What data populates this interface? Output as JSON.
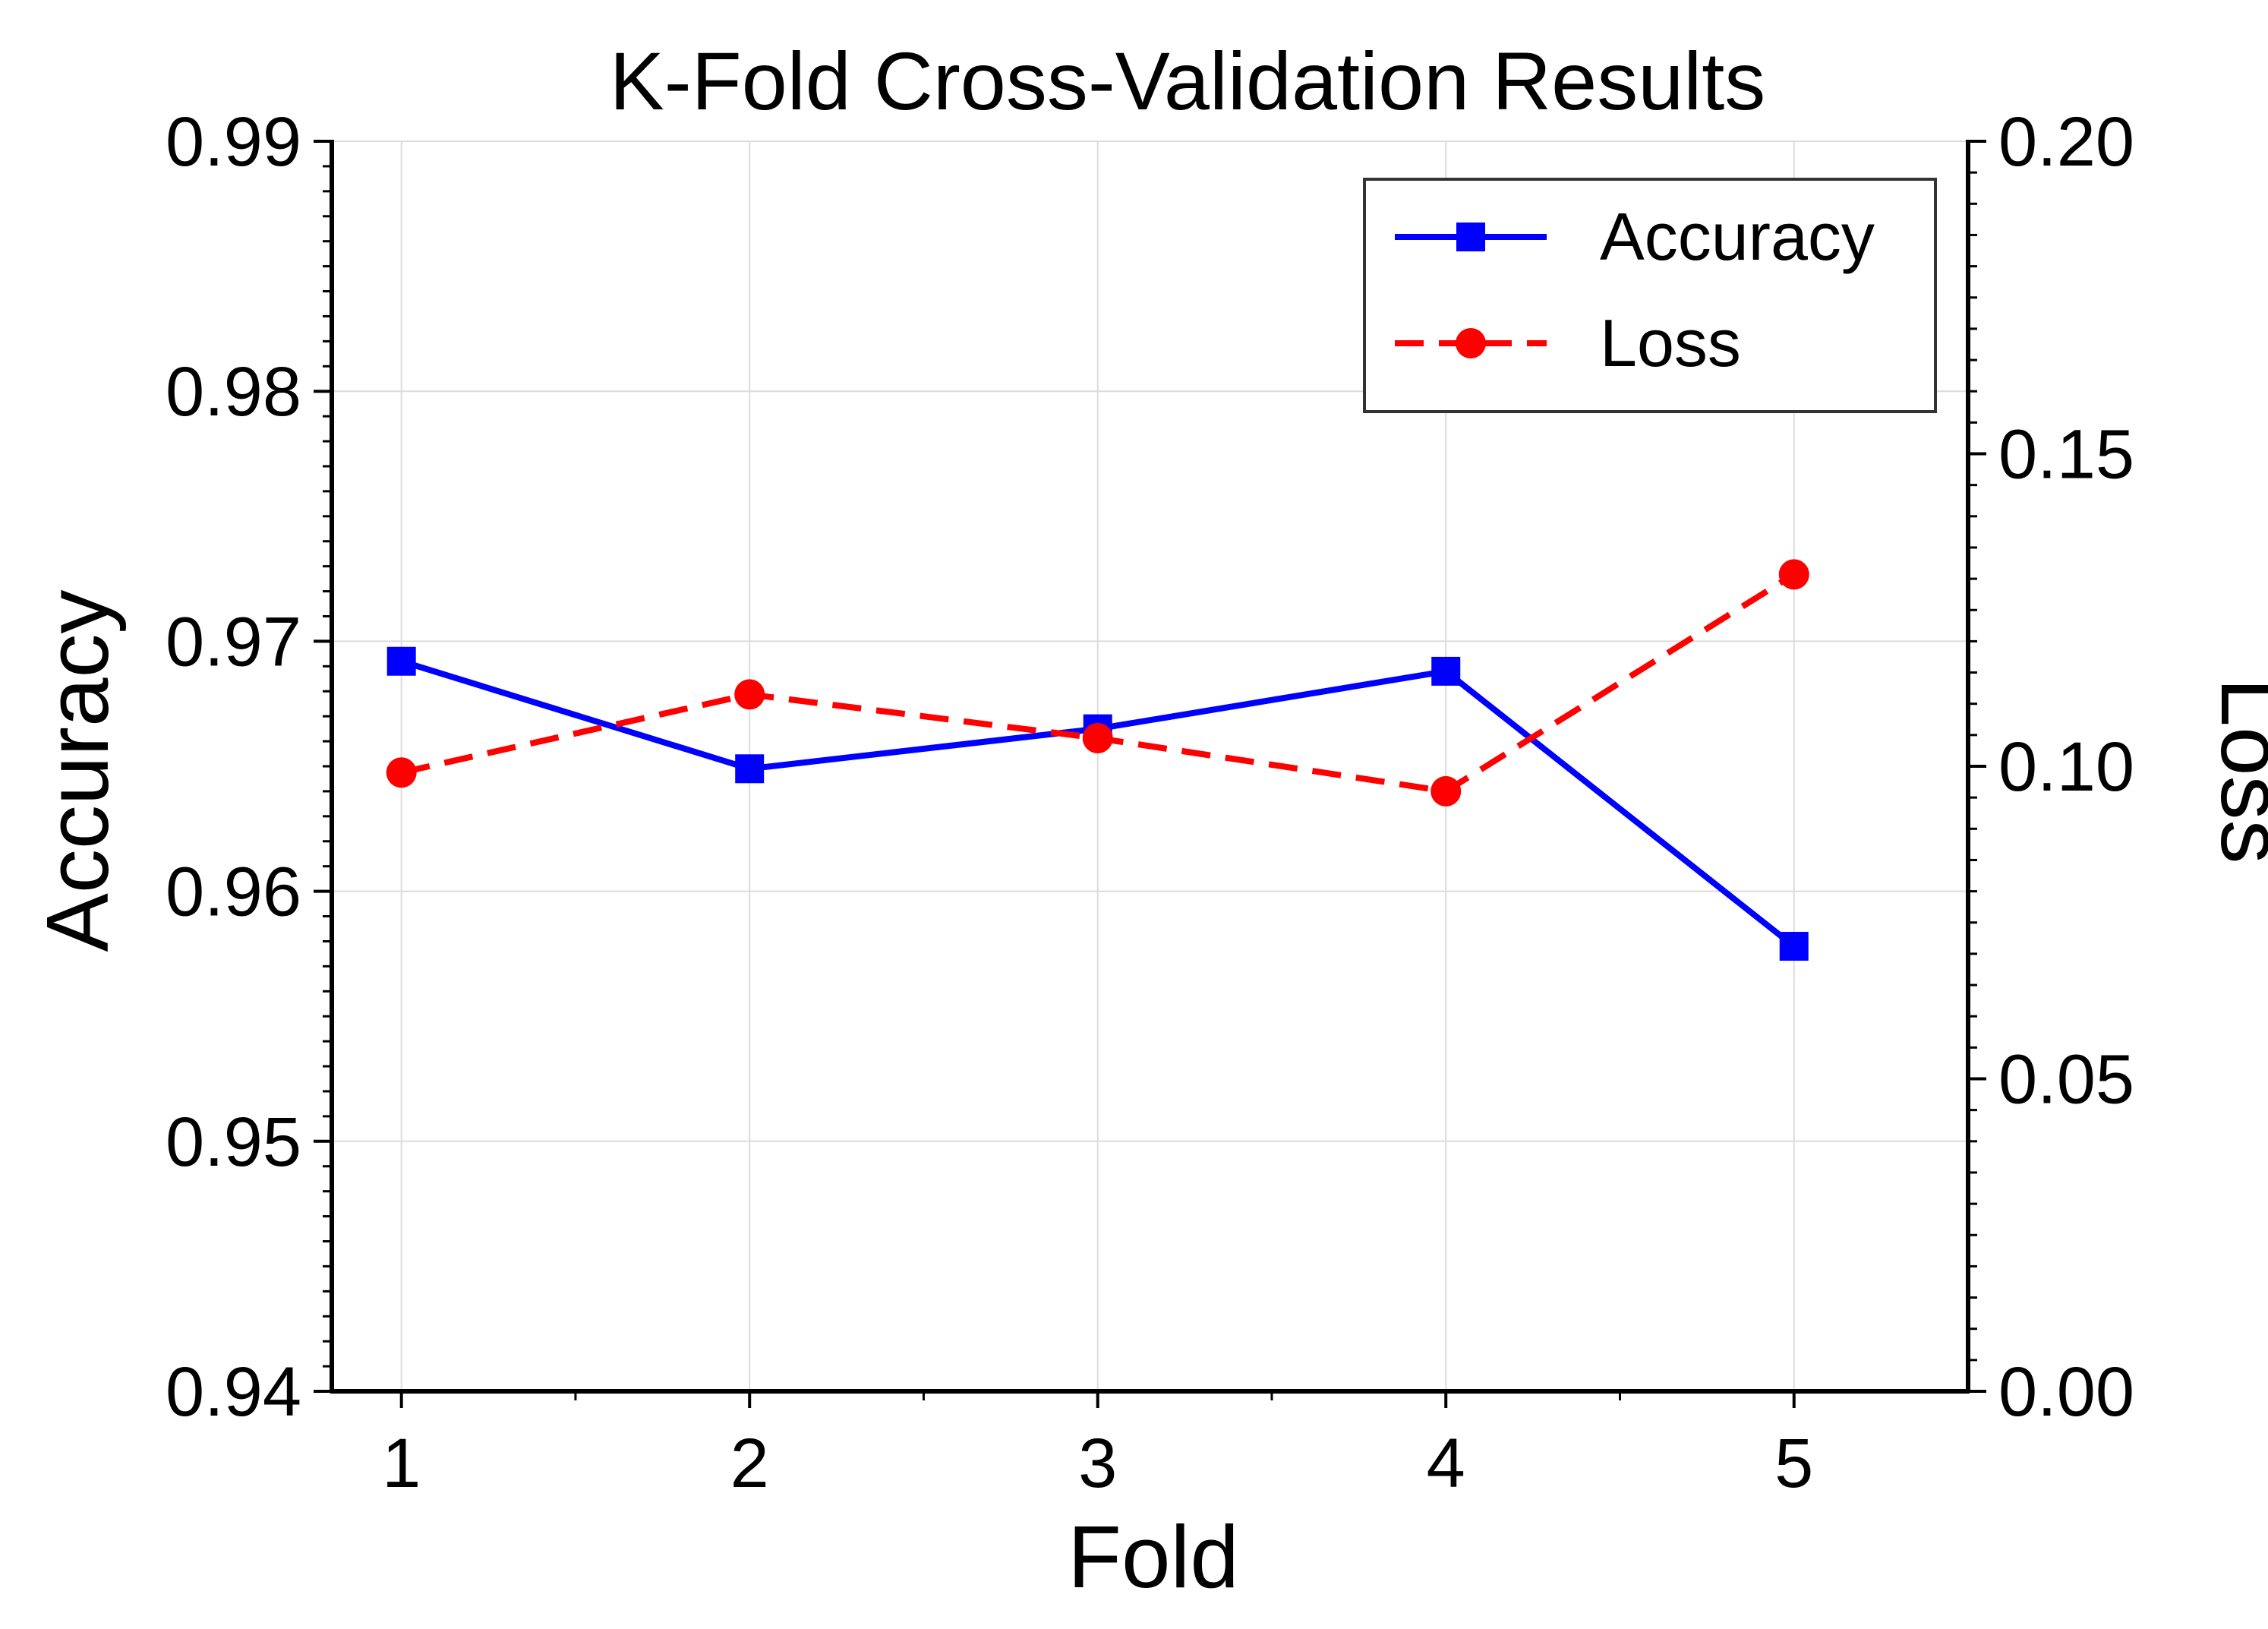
{
  "chart_data": {
    "type": "line",
    "title": "K-Fold Cross-Validation Results",
    "xlabel": "Fold",
    "ylabel": "Accuracy",
    "y2label": "Loss",
    "x": [
      1,
      2,
      3,
      4,
      5
    ],
    "xlim": [
      0.8,
      5.5
    ],
    "ylim": [
      0.94,
      0.99
    ],
    "y2lim": [
      0.0,
      0.2
    ],
    "xticks": [
      "1",
      "2",
      "3",
      "4",
      "5"
    ],
    "yticks": [
      "0.94",
      "0.95",
      "0.96",
      "0.97",
      "0.98",
      "0.99"
    ],
    "y2ticks": [
      "0.00",
      "0.05",
      "0.10",
      "0.15",
      "0.20"
    ],
    "grid": true,
    "legend_position": "top-right",
    "series": [
      {
        "name": "Accuracy",
        "axis": "left",
        "values": [
          0.9692,
          0.9649,
          0.9665,
          0.9688,
          0.9578
        ],
        "color": "#0000ff",
        "line_style": "solid",
        "marker": "square"
      },
      {
        "name": "Loss",
        "axis": "right",
        "values": [
          0.099,
          0.1115,
          0.1045,
          0.096,
          0.1307
        ],
        "color": "#ff0000",
        "line_style": "dashed",
        "marker": "circle"
      }
    ]
  }
}
